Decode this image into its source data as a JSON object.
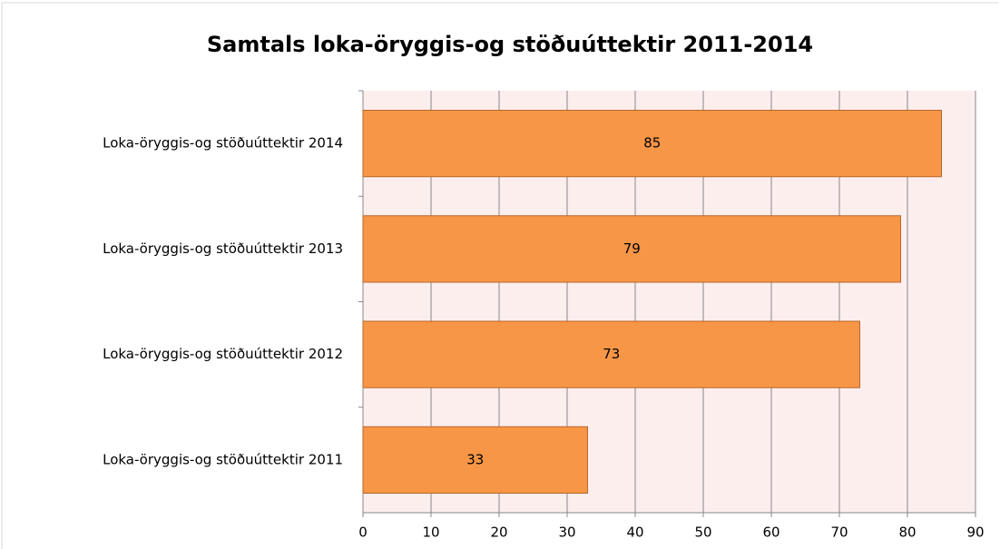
{
  "chart_data": {
    "type": "bar",
    "orientation": "horizontal",
    "title": "Samtals loka-öryggis-og stöðuúttektir 2011-2014",
    "categories": [
      "Loka-öryggis-og stöðuúttektir 2014",
      "Loka-öryggis-og stöðuúttektir 2013",
      "Loka-öryggis-og stöðuúttektir 2012",
      "Loka-öryggis-og stöðuúttektir 2011"
    ],
    "values": [
      85,
      79,
      73,
      33
    ],
    "color": "#f79646",
    "xlim": [
      0,
      90
    ],
    "xticks": [
      0,
      10,
      20,
      30,
      40,
      50,
      60,
      70,
      80,
      90
    ],
    "grid": true
  }
}
